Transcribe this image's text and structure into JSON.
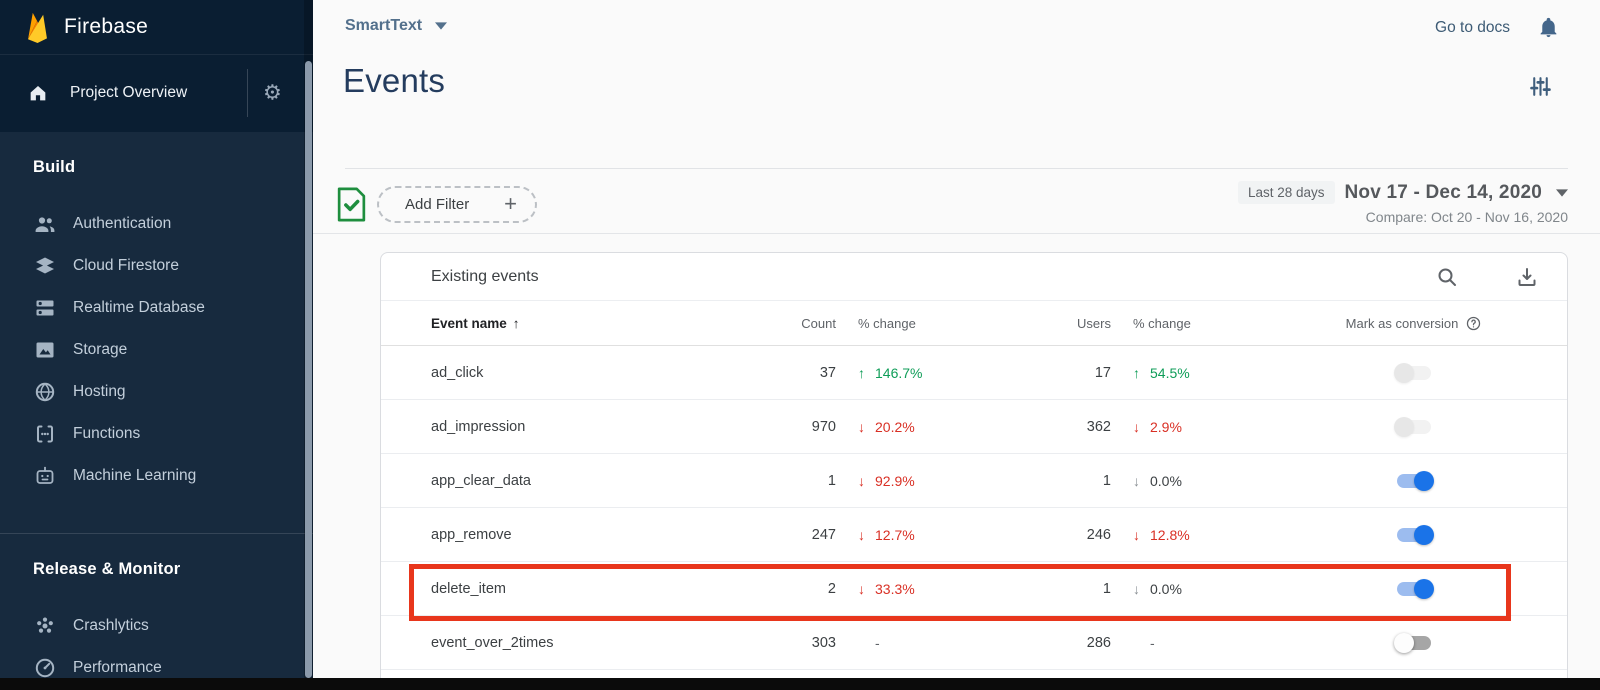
{
  "brand": {
    "name": "Firebase"
  },
  "sidebar": {
    "project_overview": "Project Overview",
    "sections": [
      {
        "label": "Build",
        "items": [
          {
            "icon": "people-icon",
            "label": "Authentication"
          },
          {
            "icon": "firestore-icon",
            "label": "Cloud Firestore"
          },
          {
            "icon": "database-icon",
            "label": "Realtime Database"
          },
          {
            "icon": "storage-icon",
            "label": "Storage"
          },
          {
            "icon": "hosting-icon",
            "label": "Hosting"
          },
          {
            "icon": "functions-icon",
            "label": "Functions"
          },
          {
            "icon": "ml-icon",
            "label": "Machine Learning"
          }
        ]
      },
      {
        "label": "Release & Monitor",
        "items": [
          {
            "icon": "crashlytics-icon",
            "label": "Crashlytics"
          },
          {
            "icon": "performance-icon",
            "label": "Performance"
          }
        ]
      }
    ]
  },
  "topbar": {
    "project_name": "SmartText",
    "go_to_docs": "Go to docs"
  },
  "page": {
    "title": "Events"
  },
  "filter_bar": {
    "add_filter_label": "Add Filter",
    "date_chip": "Last 28 days",
    "date_range": "Nov 17 - Dec 14, 2020",
    "compare": "Compare: Oct 20 - Nov 16, 2020"
  },
  "table": {
    "title": "Existing events",
    "columns": {
      "event_name": "Event name",
      "count": "Count",
      "count_change": "% change",
      "users": "Users",
      "users_change": "% change",
      "conversion": "Mark as conversion"
    },
    "rows": [
      {
        "event_name": "ad_click",
        "count": "37",
        "count_change": "146.7%",
        "count_dir": "up",
        "count_tone": "green",
        "users": "17",
        "users_change": "54.5%",
        "users_dir": "up",
        "users_tone": "green",
        "toggle": "off-faint",
        "highlighted": false
      },
      {
        "event_name": "ad_impression",
        "count": "970",
        "count_change": "20.2%",
        "count_dir": "down",
        "count_tone": "red",
        "users": "362",
        "users_change": "2.9%",
        "users_dir": "down",
        "users_tone": "red",
        "toggle": "off-faint",
        "highlighted": false
      },
      {
        "event_name": "app_clear_data",
        "count": "1",
        "count_change": "92.9%",
        "count_dir": "down",
        "count_tone": "red",
        "users": "1",
        "users_change": "0.0%",
        "users_dir": "down",
        "users_tone": "neutral",
        "toggle": "on",
        "highlighted": false
      },
      {
        "event_name": "app_remove",
        "count": "247",
        "count_change": "12.7%",
        "count_dir": "down",
        "count_tone": "red",
        "users": "246",
        "users_change": "12.8%",
        "users_dir": "down",
        "users_tone": "red",
        "toggle": "on",
        "highlighted": false
      },
      {
        "event_name": "delete_item",
        "count": "2",
        "count_change": "33.3%",
        "count_dir": "down",
        "count_tone": "red",
        "users": "1",
        "users_change": "0.0%",
        "users_dir": "down",
        "users_tone": "neutral",
        "toggle": "on",
        "highlighted": true
      },
      {
        "event_name": "event_over_2times",
        "count": "303",
        "count_change": "-",
        "count_dir": "none",
        "count_tone": "none",
        "users": "286",
        "users_change": "-",
        "users_dir": "none",
        "users_tone": "none",
        "toggle": "off",
        "highlighted": false
      }
    ]
  },
  "colors": {
    "sidebar_top": "#0a1e32",
    "sidebar_body": "#172a3e",
    "accent_blue": "#1a73e8",
    "positive_green": "#0f9d58",
    "negative_red": "#d93025",
    "highlight_red": "#e8361c",
    "filter_check_green": "#1e8e3e"
  }
}
